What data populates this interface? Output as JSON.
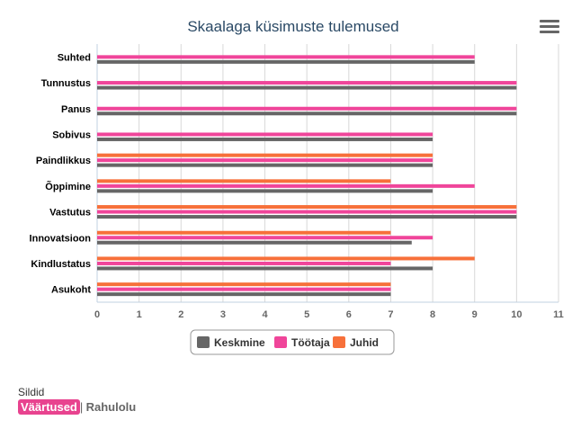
{
  "chart_data": {
    "type": "bar",
    "orientation": "horizontal",
    "title": "Skaalaga küsimuste tulemused",
    "categories": [
      "Suhted",
      "Tunnustus",
      "Panus",
      "Sobivus",
      "Paindlikkus",
      "Õppimine",
      "Vastutus",
      "Innovatsioon",
      "Kindlustatus",
      "Asukoht"
    ],
    "series": [
      {
        "name": "Juhid",
        "color": "#f7703a",
        "values": [
          null,
          null,
          null,
          null,
          8,
          7,
          10,
          7,
          9,
          7
        ]
      },
      {
        "name": "Töötaja",
        "color": "#f0459a",
        "values": [
          9,
          10,
          10,
          8,
          8,
          9,
          10,
          8,
          7,
          7
        ]
      },
      {
        "name": "Keskmine",
        "color": "#666666",
        "values": [
          9,
          10,
          10,
          8,
          8,
          8,
          10,
          7.5,
          8,
          7
        ]
      }
    ],
    "x_ticks": [
      0,
      1,
      2,
      3,
      4,
      5,
      6,
      7,
      8,
      9,
      10,
      11
    ],
    "xlim": [
      0,
      11
    ],
    "grid": true,
    "legend": {
      "placement": "bottom-center",
      "entries": [
        {
          "name": "Keskmine",
          "color": "#666666"
        },
        {
          "name": "Töötaja",
          "color": "#f0459a"
        },
        {
          "name": "Juhid",
          "color": "#f7703a"
        }
      ]
    }
  },
  "toolbar": {
    "menu_icon": "hamburger-menu-icon"
  },
  "tags": {
    "label": "Sildid",
    "active": "Väärtused",
    "separator": "|",
    "other": "Rahulolu"
  }
}
